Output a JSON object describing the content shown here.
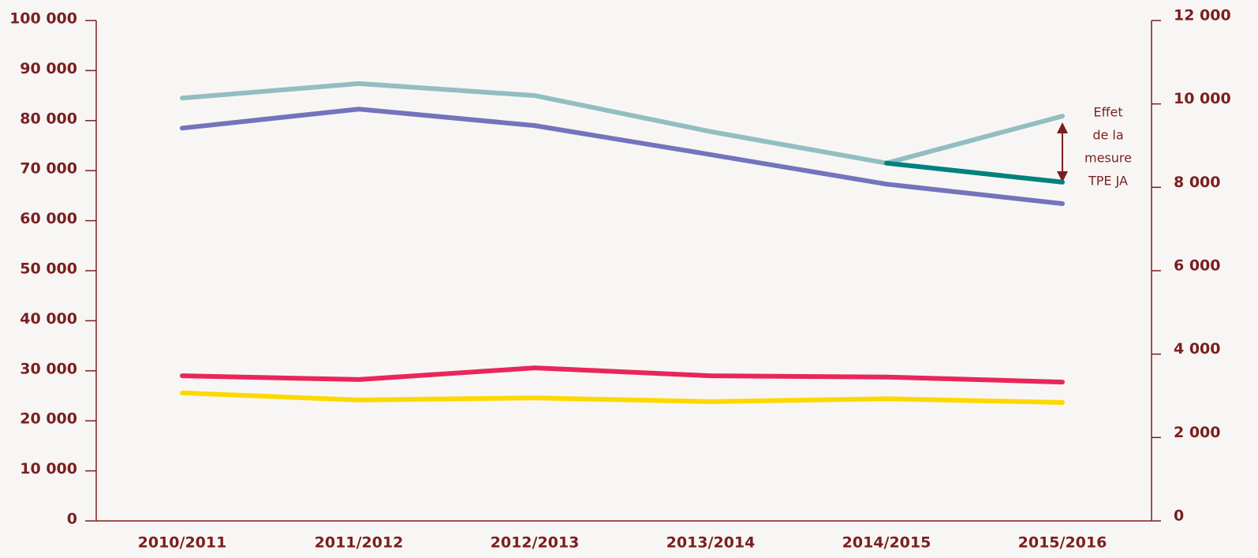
{
  "chart_data": {
    "type": "line",
    "categories": [
      "2010/2011",
      "2011/2012",
      "2012/2013",
      "2013/2014",
      "2014/2015",
      "2015/2016"
    ],
    "series": [
      {
        "color": "#93bec1",
        "values": [
          84500,
          87400,
          85000,
          77800,
          71500,
          80900
        ]
      },
      {
        "color": "#7474bc",
        "values": [
          78500,
          82300,
          79000,
          73200,
          67300,
          63400
        ]
      },
      {
        "color": "#00817e",
        "values": [
          null,
          null,
          null,
          null,
          71500,
          67700
        ]
      },
      {
        "color": "#e8265a",
        "axis": "y2",
        "values": [
          3480,
          3390,
          3670,
          3480,
          3450,
          3330
        ]
      },
      {
        "color": "#fdd800",
        "axis": "y2",
        "values": [
          3070,
          2900,
          2950,
          2860,
          2930,
          2840
        ]
      }
    ],
    "ylim": [
      0,
      100000
    ],
    "yticks": [
      0,
      {
        "value": 10000,
        "label": "10 000"
      },
      {
        "value": 20000,
        "label": "20 000"
      },
      {
        "value": 30000,
        "label": "30 000"
      },
      {
        "value": 40000,
        "label": "40 000"
      },
      {
        "value": 50000,
        "label": "50 000"
      },
      {
        "value": 60000,
        "label": "60 000"
      },
      {
        "value": 70000,
        "label": "70 000"
      },
      {
        "value": 80000,
        "label": "80 000"
      },
      {
        "value": 90000,
        "label": "90 000"
      },
      {
        "value": 100000,
        "label": "100 000"
      }
    ],
    "y2lim": [
      0,
      12000
    ],
    "y2ticks": [
      0,
      {
        "value": 2000,
        "label": "2 000"
      },
      {
        "value": 4000,
        "label": "4 000"
      },
      {
        "value": 6000,
        "label": "6 000"
      },
      {
        "value": 8000,
        "label": "8 000"
      },
      {
        "value": 10000,
        "label": "10 000"
      },
      {
        "value": 12000,
        "label": "12 000"
      }
    ],
    "annotation": [
      "Effet",
      "de la",
      "mesure",
      "TPE JA"
    ],
    "grid": false
  }
}
